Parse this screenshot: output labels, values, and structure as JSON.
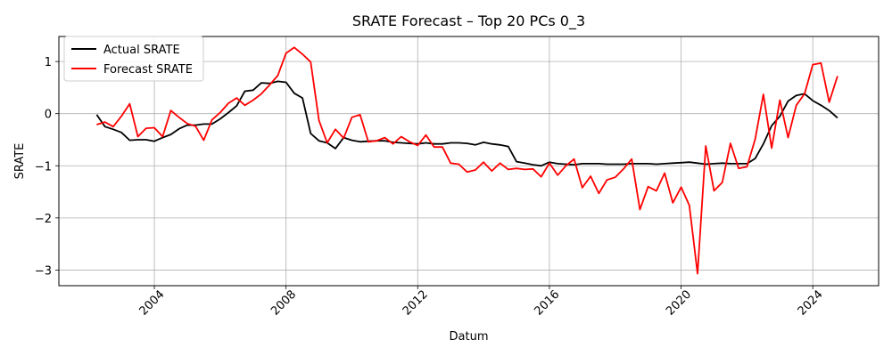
{
  "chart_data": {
    "type": "line",
    "title": "SRATE Forecast – Top 20 PCs 0_3",
    "xlabel": "Datum",
    "ylabel": "SRATE",
    "xlim": [
      2001.1,
      2026.0
    ],
    "ylim": [
      -3.3,
      1.48
    ],
    "x_ticks": [
      {
        "value": 2004,
        "label": "2004"
      },
      {
        "value": 2008,
        "label": "2008"
      },
      {
        "value": 2012,
        "label": "2012"
      },
      {
        "value": 2016,
        "label": "2016"
      },
      {
        "value": 2020,
        "label": "2020"
      },
      {
        "value": 2024,
        "label": "2024"
      }
    ],
    "y_ticks": [
      {
        "value": 1,
        "label": "1"
      },
      {
        "value": 0,
        "label": "0"
      },
      {
        "value": -1,
        "label": "−1"
      },
      {
        "value": -2,
        "label": "−2"
      },
      {
        "value": -3,
        "label": "−3"
      }
    ],
    "grid": true,
    "legend_position": "upper-left",
    "series": [
      {
        "name": "Actual SRATE",
        "color": "#000000",
        "points": [
          [
            2002.25,
            -0.02
          ],
          [
            2002.5,
            -0.25
          ],
          [
            2002.75,
            -0.3
          ],
          [
            2003.0,
            -0.36
          ],
          [
            2003.25,
            -0.51
          ],
          [
            2003.5,
            -0.5
          ],
          [
            2003.75,
            -0.5
          ],
          [
            2004.0,
            -0.53
          ],
          [
            2004.25,
            -0.46
          ],
          [
            2004.5,
            -0.4
          ],
          [
            2004.75,
            -0.29
          ],
          [
            2005.0,
            -0.22
          ],
          [
            2005.25,
            -0.22
          ],
          [
            2005.5,
            -0.2
          ],
          [
            2005.75,
            -0.2
          ],
          [
            2006.0,
            -0.1
          ],
          [
            2006.25,
            0.02
          ],
          [
            2006.5,
            0.15
          ],
          [
            2006.75,
            0.43
          ],
          [
            2007.0,
            0.45
          ],
          [
            2007.25,
            0.59
          ],
          [
            2007.5,
            0.58
          ],
          [
            2007.75,
            0.62
          ],
          [
            2008.0,
            0.6
          ],
          [
            2008.25,
            0.39
          ],
          [
            2008.5,
            0.3
          ],
          [
            2008.75,
            -0.38
          ],
          [
            2009.0,
            -0.52
          ],
          [
            2009.25,
            -0.56
          ],
          [
            2009.5,
            -0.67
          ],
          [
            2009.75,
            -0.46
          ],
          [
            2010.0,
            -0.51
          ],
          [
            2010.25,
            -0.54
          ],
          [
            2010.5,
            -0.53
          ],
          [
            2010.75,
            -0.52
          ],
          [
            2011.0,
            -0.52
          ],
          [
            2011.25,
            -0.55
          ],
          [
            2011.5,
            -0.56
          ],
          [
            2011.75,
            -0.57
          ],
          [
            2012.0,
            -0.58
          ],
          [
            2012.25,
            -0.56
          ],
          [
            2012.5,
            -0.58
          ],
          [
            2012.75,
            -0.58
          ],
          [
            2013.0,
            -0.56
          ],
          [
            2013.25,
            -0.56
          ],
          [
            2013.5,
            -0.57
          ],
          [
            2013.75,
            -0.6
          ],
          [
            2014.0,
            -0.55
          ],
          [
            2014.25,
            -0.58
          ],
          [
            2014.5,
            -0.6
          ],
          [
            2014.75,
            -0.63
          ],
          [
            2015.0,
            -0.92
          ],
          [
            2015.25,
            -0.95
          ],
          [
            2015.5,
            -0.98
          ],
          [
            2015.75,
            -1.0
          ],
          [
            2016.0,
            -0.93
          ],
          [
            2016.25,
            -0.96
          ],
          [
            2016.5,
            -0.97
          ],
          [
            2016.75,
            -0.98
          ],
          [
            2017.0,
            -0.96
          ],
          [
            2017.25,
            -0.96
          ],
          [
            2017.5,
            -0.96
          ],
          [
            2017.75,
            -0.97
          ],
          [
            2018.0,
            -0.97
          ],
          [
            2018.25,
            -0.97
          ],
          [
            2018.5,
            -0.96
          ],
          [
            2018.75,
            -0.96
          ],
          [
            2019.0,
            -0.96
          ],
          [
            2019.25,
            -0.97
          ],
          [
            2019.5,
            -0.96
          ],
          [
            2019.75,
            -0.95
          ],
          [
            2020.0,
            -0.94
          ],
          [
            2020.25,
            -0.93
          ],
          [
            2020.5,
            -0.95
          ],
          [
            2020.75,
            -0.97
          ],
          [
            2021.0,
            -0.96
          ],
          [
            2021.25,
            -0.95
          ],
          [
            2021.5,
            -0.96
          ],
          [
            2021.75,
            -0.96
          ],
          [
            2022.0,
            -0.96
          ],
          [
            2022.25,
            -0.86
          ],
          [
            2022.5,
            -0.58
          ],
          [
            2022.75,
            -0.23
          ],
          [
            2023.0,
            -0.05
          ],
          [
            2023.25,
            0.24
          ],
          [
            2023.5,
            0.35
          ],
          [
            2023.75,
            0.38
          ],
          [
            2024.0,
            0.25
          ],
          [
            2024.25,
            0.16
          ],
          [
            2024.5,
            0.06
          ],
          [
            2024.75,
            -0.08
          ]
        ]
      },
      {
        "name": "Forecast SRATE",
        "color": "#ff0000",
        "points": [
          [
            2002.25,
            -0.21
          ],
          [
            2002.5,
            -0.16
          ],
          [
            2002.75,
            -0.25
          ],
          [
            2003.0,
            -0.05
          ],
          [
            2003.25,
            0.19
          ],
          [
            2003.5,
            -0.44
          ],
          [
            2003.75,
            -0.28
          ],
          [
            2004.0,
            -0.27
          ],
          [
            2004.25,
            -0.44
          ],
          [
            2004.5,
            0.06
          ],
          [
            2004.75,
            -0.07
          ],
          [
            2005.0,
            -0.19
          ],
          [
            2005.25,
            -0.24
          ],
          [
            2005.5,
            -0.51
          ],
          [
            2005.75,
            -0.12
          ],
          [
            2006.0,
            0.02
          ],
          [
            2006.25,
            0.2
          ],
          [
            2006.5,
            0.3
          ],
          [
            2006.75,
            0.16
          ],
          [
            2007.0,
            0.26
          ],
          [
            2007.25,
            0.38
          ],
          [
            2007.5,
            0.55
          ],
          [
            2007.75,
            0.73
          ],
          [
            2008.0,
            1.16
          ],
          [
            2008.25,
            1.27
          ],
          [
            2008.5,
            1.14
          ],
          [
            2008.75,
            0.99
          ],
          [
            2009.0,
            -0.13
          ],
          [
            2009.25,
            -0.56
          ],
          [
            2009.5,
            -0.3
          ],
          [
            2009.75,
            -0.47
          ],
          [
            2010.0,
            -0.07
          ],
          [
            2010.25,
            -0.02
          ],
          [
            2010.5,
            -0.54
          ],
          [
            2010.75,
            -0.52
          ],
          [
            2011.0,
            -0.46
          ],
          [
            2011.25,
            -0.58
          ],
          [
            2011.5,
            -0.44
          ],
          [
            2011.75,
            -0.54
          ],
          [
            2012.0,
            -0.61
          ],
          [
            2012.25,
            -0.41
          ],
          [
            2012.5,
            -0.64
          ],
          [
            2012.75,
            -0.64
          ],
          [
            2013.0,
            -0.95
          ],
          [
            2013.25,
            -0.97
          ],
          [
            2013.5,
            -1.12
          ],
          [
            2013.75,
            -1.08
          ],
          [
            2014.0,
            -0.93
          ],
          [
            2014.25,
            -1.1
          ],
          [
            2014.5,
            -0.95
          ],
          [
            2014.75,
            -1.07
          ],
          [
            2015.0,
            -1.05
          ],
          [
            2015.25,
            -1.07
          ],
          [
            2015.5,
            -1.06
          ],
          [
            2015.75,
            -1.21
          ],
          [
            2016.0,
            -0.95
          ],
          [
            2016.25,
            -1.18
          ],
          [
            2016.5,
            -1.0
          ],
          [
            2016.75,
            -0.87
          ],
          [
            2017.0,
            -1.42
          ],
          [
            2017.25,
            -1.2
          ],
          [
            2017.5,
            -1.53
          ],
          [
            2017.75,
            -1.27
          ],
          [
            2018.0,
            -1.22
          ],
          [
            2018.25,
            -1.06
          ],
          [
            2018.5,
            -0.87
          ],
          [
            2018.75,
            -1.84
          ],
          [
            2019.0,
            -1.4
          ],
          [
            2019.25,
            -1.48
          ],
          [
            2019.5,
            -1.14
          ],
          [
            2019.75,
            -1.71
          ],
          [
            2020.0,
            -1.41
          ],
          [
            2020.25,
            -1.76
          ],
          [
            2020.5,
            -3.07
          ],
          [
            2020.75,
            -0.62
          ],
          [
            2021.0,
            -1.48
          ],
          [
            2021.25,
            -1.32
          ],
          [
            2021.5,
            -0.57
          ],
          [
            2021.75,
            -1.05
          ],
          [
            2022.0,
            -1.02
          ],
          [
            2022.25,
            -0.49
          ],
          [
            2022.5,
            0.37
          ],
          [
            2022.75,
            -0.66
          ],
          [
            2023.0,
            0.26
          ],
          [
            2023.25,
            -0.46
          ],
          [
            2023.5,
            0.16
          ],
          [
            2023.75,
            0.38
          ],
          [
            2024.0,
            0.94
          ],
          [
            2024.25,
            0.97
          ],
          [
            2024.5,
            0.22
          ],
          [
            2024.75,
            0.72
          ]
        ]
      }
    ]
  }
}
